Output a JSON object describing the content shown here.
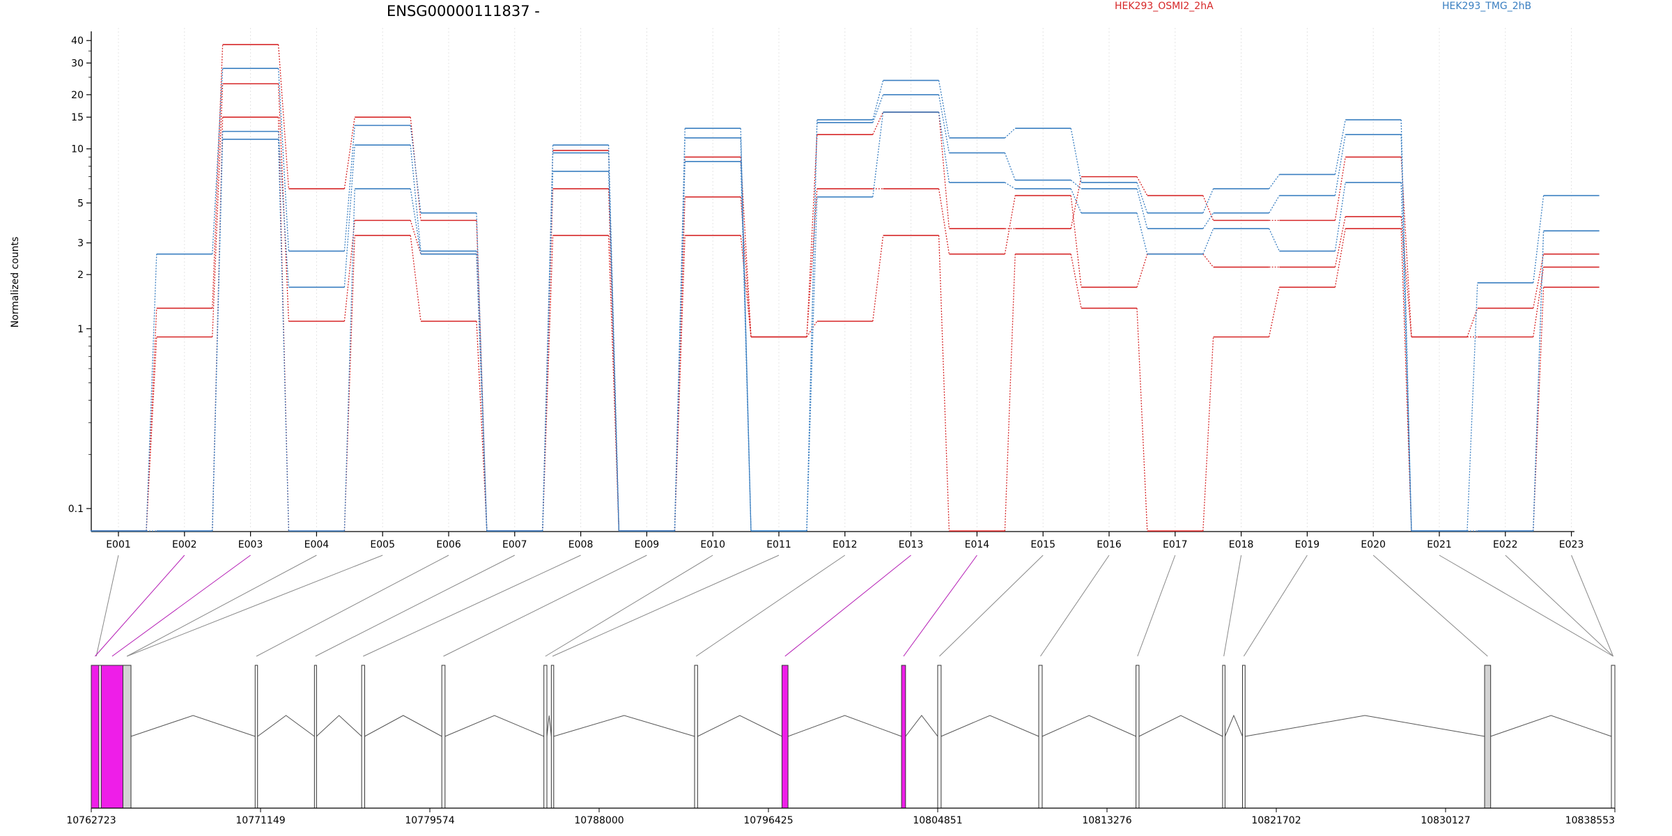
{
  "chart_data": {
    "type": "line",
    "title": "ENSG00000111837 -",
    "ylabel": "Normalized counts",
    "yscale": "log",
    "ylim": [
      0.08,
      45
    ],
    "yticks": [
      {
        "v": 0.1,
        "label": "0.1"
      },
      {
        "v": 1,
        "label": "1"
      },
      {
        "v": 2,
        "label": "2"
      },
      {
        "v": 3,
        "label": "3"
      },
      {
        "v": 5,
        "label": "5"
      },
      {
        "v": 10,
        "label": "10"
      },
      {
        "v": 15,
        "label": "15"
      },
      {
        "v": 20,
        "label": "20"
      },
      {
        "v": 30,
        "label": "30"
      },
      {
        "v": 40,
        "label": "40"
      }
    ],
    "categories": [
      "E001",
      "E002",
      "E003",
      "E004",
      "E005",
      "E006",
      "E007",
      "E008",
      "E009",
      "E010",
      "E011",
      "E012",
      "E013",
      "E014",
      "E015",
      "E016",
      "E017",
      "E018",
      "E019",
      "E020",
      "E021",
      "E022",
      "E023"
    ],
    "legend": [
      {
        "name": "HEK293_OSMI2_2hA",
        "color": "#d62728"
      },
      {
        "name": "HEK293_TMG_2hB",
        "color": "#3a7fc1"
      }
    ],
    "series": [
      {
        "group": "HEK293_OSMI2_2hA",
        "color": "#d62728",
        "values": [
          0.075,
          1.3,
          38,
          6,
          15,
          4,
          0.075,
          9.8,
          0.075,
          9,
          0.9,
          12,
          16,
          3.6,
          3.6,
          7,
          5.5,
          4,
          4,
          9,
          0.9,
          1.3,
          2.6
        ]
      },
      {
        "group": "HEK293_OSMI2_2hA",
        "color": "#d62728",
        "values": [
          0.075,
          0.9,
          23,
          1.1,
          4,
          2.6,
          0.075,
          6,
          0.075,
          5.4,
          0.9,
          6,
          6,
          2.6,
          5.5,
          1.7,
          2.6,
          2.2,
          2.2,
          4.2,
          0.9,
          0.9,
          2.2
        ]
      },
      {
        "group": "HEK293_OSMI2_2hA",
        "color": "#d62728",
        "values": [
          0.075,
          0.075,
          15,
          0.075,
          3.3,
          1.1,
          0.075,
          3.3,
          0.075,
          3.3,
          0.9,
          1.1,
          3.3,
          0.075,
          2.6,
          1.3,
          0.075,
          0.9,
          1.7,
          3.6,
          0.075,
          0.075,
          1.7
        ]
      },
      {
        "group": "HEK293_TMG_2hB",
        "color": "#3a7fc1",
        "values": [
          0.075,
          2.6,
          28,
          2.7,
          13.5,
          4.4,
          0.075,
          10.5,
          0.075,
          13,
          0.075,
          14.5,
          24,
          11.5,
          13,
          6.5,
          4.4,
          6,
          7.2,
          14.5,
          0.075,
          1.8,
          5.5
        ]
      },
      {
        "group": "HEK293_TMG_2hB",
        "color": "#3a7fc1",
        "values": [
          0.075,
          0.075,
          12.5,
          1.7,
          10.5,
          2.7,
          0.075,
          7.5,
          0.075,
          11.5,
          0.075,
          14,
          20,
          9.5,
          6.7,
          6,
          3.6,
          4.4,
          5.5,
          12,
          0.075,
          0.075,
          3.5
        ]
      },
      {
        "group": "HEK293_TMG_2hB",
        "color": "#3a7fc1",
        "values": [
          0.075,
          0.075,
          11.3,
          0.075,
          6,
          2.6,
          0.075,
          9.5,
          0.075,
          8.5,
          0.075,
          5.4,
          16,
          6.5,
          6,
          4.4,
          2.6,
          3.6,
          2.7,
          6.5,
          0.075,
          0.075,
          3.5
        ]
      }
    ],
    "gene_model": {
      "start_label": "10762723",
      "end_label": "10838553",
      "axis_labels": [
        "10762723",
        "10771149",
        "10779574",
        "10788000",
        "10796425",
        "10804851",
        "10813276",
        "10821702",
        "10830127",
        "10838553"
      ],
      "axis_values": [
        10762723,
        10771149,
        10779574,
        10788000,
        10796425,
        10804851,
        10813276,
        10821702,
        10830127,
        10838553
      ],
      "highlight_color": "#ee1ee8",
      "exons": [
        {
          "start": 10762723,
          "end": 10763220,
          "ids": [
            "E001"
          ],
          "style": "white"
        },
        {
          "start": 10762723,
          "end": 10763100,
          "ids": [
            "E002"
          ],
          "style": "highlight"
        },
        {
          "start": 10763220,
          "end": 10764300,
          "ids": [
            "E003"
          ],
          "style": "highlight"
        },
        {
          "start": 10764300,
          "end": 10764700,
          "ids": [
            "E004",
            "E005"
          ],
          "style": "gray"
        },
        {
          "start": 10770880,
          "end": 10771000,
          "ids": [
            "E006"
          ],
          "style": "white"
        },
        {
          "start": 10773830,
          "end": 10773930,
          "ids": [
            "E007"
          ],
          "style": "white"
        },
        {
          "start": 10776180,
          "end": 10776330,
          "ids": [
            "E008"
          ],
          "style": "white"
        },
        {
          "start": 10780170,
          "end": 10780330,
          "ids": [
            "E009"
          ],
          "style": "white"
        },
        {
          "start": 10785250,
          "end": 10785400,
          "ids": [
            "E010"
          ],
          "style": "white"
        },
        {
          "start": 10785620,
          "end": 10785740,
          "ids": [
            "E011"
          ],
          "style": "white"
        },
        {
          "start": 10792750,
          "end": 10792900,
          "ids": [
            "E012"
          ],
          "style": "white"
        },
        {
          "start": 10797100,
          "end": 10797400,
          "ids": [
            "E013"
          ],
          "style": "highlight"
        },
        {
          "start": 10803050,
          "end": 10803250,
          "ids": [
            "E014"
          ],
          "style": "highlight"
        },
        {
          "start": 10804850,
          "end": 10805020,
          "ids": [
            "E015"
          ],
          "style": "white"
        },
        {
          "start": 10809880,
          "end": 10810050,
          "ids": [
            "E016"
          ],
          "style": "white"
        },
        {
          "start": 10814720,
          "end": 10814870,
          "ids": [
            "E017"
          ],
          "style": "white"
        },
        {
          "start": 10819030,
          "end": 10819150,
          "ids": [
            "E018"
          ],
          "style": "white"
        },
        {
          "start": 10820020,
          "end": 10820150,
          "ids": [
            "E019"
          ],
          "style": "white"
        },
        {
          "start": 10832070,
          "end": 10832370,
          "ids": [
            "E020"
          ],
          "style": "gray"
        },
        {
          "start": 10838380,
          "end": 10838553,
          "ids": [
            "E021",
            "E022",
            "E023"
          ],
          "style": "white"
        }
      ]
    }
  }
}
